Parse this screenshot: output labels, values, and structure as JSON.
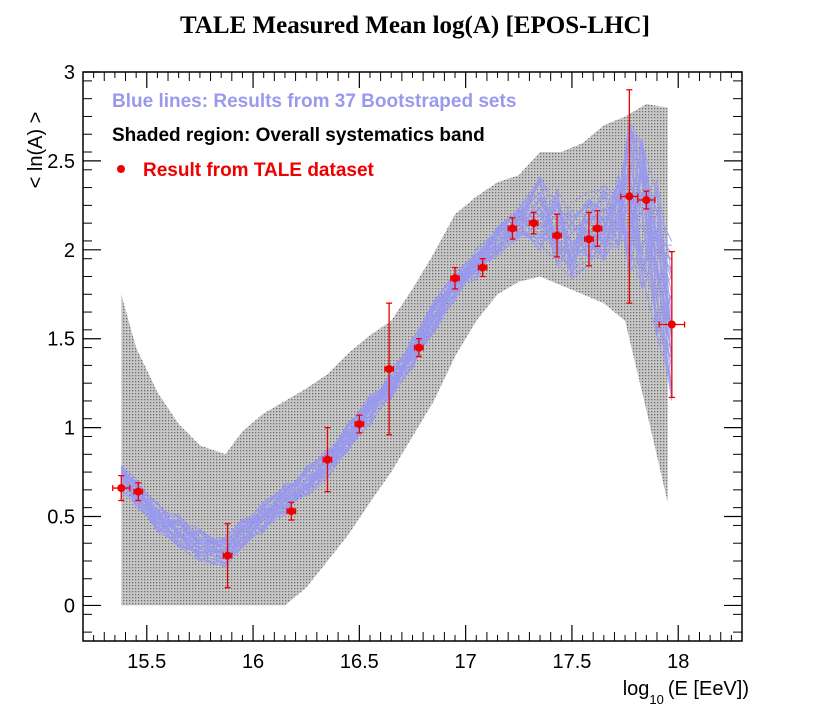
{
  "chart_data": {
    "type": "line",
    "title": "TALE Measured Mean log(A) [EPOS-LHC]",
    "xlabel": "(E [EeV])",
    "xlabel_prefix": "log",
    "xlabel_subscript": "10",
    "ylabel": "< ln(A) >",
    "xlim": [
      15.2,
      18.3
    ],
    "ylim": [
      -0.2,
      3.0
    ],
    "x_ticks": [
      15.5,
      16,
      16.5,
      17,
      17.5,
      18
    ],
    "x_tick_labels": [
      "15.5",
      "16",
      "16.5",
      "17",
      "17.5",
      "18"
    ],
    "y_ticks": [
      0,
      0.5,
      1,
      1.5,
      2,
      2.5,
      3
    ],
    "y_tick_labels": [
      "0",
      "0.5",
      "1",
      "1.5",
      "2",
      "2.5",
      "3"
    ],
    "legend": [
      {
        "label": "Blue lines: Results from 37 Bootstraped sets",
        "color": "#9999ee",
        "marker": "none"
      },
      {
        "label": "Shaded region: Overall systematics band",
        "color": "#000000",
        "marker": "none"
      },
      {
        "label": "Result from TALE dataset",
        "color": "#ee0000",
        "marker": "dot"
      }
    ],
    "bootstrap_sets": 37,
    "systematics_band": {
      "x": [
        15.38,
        15.45,
        15.55,
        15.65,
        15.75,
        15.87,
        15.95,
        16.05,
        16.15,
        16.25,
        16.35,
        16.45,
        16.55,
        16.65,
        16.75,
        16.85,
        16.95,
        17.05,
        17.15,
        17.25,
        17.35,
        17.45,
        17.55,
        17.65,
        17.75,
        17.85,
        17.95
      ],
      "upper": [
        1.75,
        1.45,
        1.2,
        1.02,
        0.9,
        0.85,
        0.98,
        1.08,
        1.15,
        1.22,
        1.3,
        1.42,
        1.52,
        1.6,
        1.78,
        1.98,
        2.2,
        2.3,
        2.38,
        2.42,
        2.55,
        2.55,
        2.6,
        2.7,
        2.75,
        2.82,
        2.8
      ],
      "lower": [
        0.0,
        0.0,
        0.0,
        0.0,
        0.0,
        0.0,
        0.0,
        0.0,
        0.0,
        0.1,
        0.25,
        0.4,
        0.58,
        0.75,
        0.95,
        1.15,
        1.4,
        1.6,
        1.75,
        1.82,
        1.85,
        1.8,
        1.75,
        1.7,
        1.6,
        1.1,
        0.58
      ]
    },
    "mean_curve": {
      "x": [
        15.38,
        15.45,
        15.55,
        15.65,
        15.75,
        15.87,
        15.95,
        16.05,
        16.15,
        16.25,
        16.35,
        16.45,
        16.55,
        16.65,
        16.75,
        16.85,
        16.95,
        17.05,
        17.15,
        17.25,
        17.35,
        17.43,
        17.5,
        17.58,
        17.65,
        17.72,
        17.77,
        17.83,
        17.9,
        17.97
      ],
      "y": [
        0.7,
        0.63,
        0.5,
        0.42,
        0.34,
        0.3,
        0.4,
        0.5,
        0.6,
        0.7,
        0.8,
        0.95,
        1.1,
        1.25,
        1.42,
        1.62,
        1.8,
        1.92,
        2.05,
        2.15,
        2.2,
        2.12,
        2.05,
        2.12,
        2.15,
        2.22,
        2.3,
        2.2,
        1.95,
        1.6
      ]
    },
    "series": [
      {
        "name": "Result from TALE dataset",
        "x": [
          15.38,
          15.46,
          15.88,
          16.18,
          16.35,
          16.5,
          16.64,
          16.78,
          16.95,
          17.08,
          17.22,
          17.32,
          17.43,
          17.58,
          17.62,
          17.77,
          17.85,
          17.97
        ],
        "y": [
          0.66,
          0.64,
          0.28,
          0.53,
          0.82,
          1.02,
          1.33,
          1.45,
          1.84,
          1.9,
          2.12,
          2.15,
          2.08,
          2.06,
          2.12,
          2.3,
          2.28,
          1.58
        ],
        "xerr": [
          0.04,
          0.02,
          0.02,
          0.02,
          0.02,
          0.02,
          0.02,
          0.02,
          0.02,
          0.02,
          0.02,
          0.02,
          0.02,
          0.02,
          0.02,
          0.04,
          0.04,
          0.06
        ],
        "yerr": [
          0.07,
          0.05,
          0.18,
          0.05,
          0.18,
          0.05,
          0.37,
          0.05,
          0.06,
          0.05,
          0.06,
          0.06,
          0.12,
          0.15,
          0.1,
          0.6,
          0.05,
          0.41
        ]
      }
    ]
  }
}
